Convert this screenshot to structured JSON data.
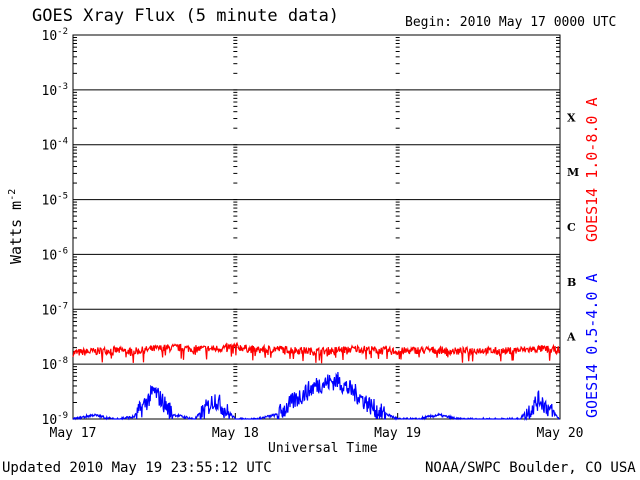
{
  "header": {
    "title": "GOES Xray Flux (5 minute data)",
    "begin": "Begin:  2010 May 17 0000 UTC"
  },
  "footer": {
    "updated": "Updated 2010 May 19 23:55:12 UTC",
    "credit": "NOAA/SWPC Boulder, CO USA"
  },
  "colors": {
    "long_channel": "#ff0000",
    "short_channel": "#0000ff",
    "axes": "#000000"
  },
  "chart_data": {
    "type": "line",
    "title": "GOES Xray Flux (5 minute data)",
    "xlabel": "Universal Time",
    "ylabel": "Watts m",
    "ylabel_superscript": "-2",
    "yscale": "log",
    "ylim": [
      1e-09,
      0.01
    ],
    "y_ticks": [
      {
        "value": 1e-09,
        "base": "10",
        "exp": "-9"
      },
      {
        "value": 1e-08,
        "base": "10",
        "exp": "-8"
      },
      {
        "value": 1e-07,
        "base": "10",
        "exp": "-7"
      },
      {
        "value": 1e-06,
        "base": "10",
        "exp": "-6"
      },
      {
        "value": 1e-05,
        "base": "10",
        "exp": "-5"
      },
      {
        "value": 0.0001,
        "base": "10",
        "exp": "-4"
      },
      {
        "value": 0.001,
        "base": "10",
        "exp": "-3"
      },
      {
        "value": 0.01,
        "base": "10",
        "exp": "-2"
      }
    ],
    "x_ticks": [
      {
        "value": "2010-05-17",
        "label": "May 17"
      },
      {
        "value": "2010-05-18",
        "label": "May 18"
      },
      {
        "value": "2010-05-19",
        "label": "May 19"
      },
      {
        "value": "2010-05-20",
        "label": "May 20"
      }
    ],
    "xlim": [
      "2010-05-17",
      "2010-05-20"
    ],
    "flare_classes": [
      {
        "label": "A",
        "y": 1e-08
      },
      {
        "label": "B",
        "y": 1e-07
      },
      {
        "label": "C",
        "y": 1e-06
      },
      {
        "label": "M",
        "y": 1e-05
      },
      {
        "label": "X",
        "y": 0.0001
      }
    ],
    "grid": "horizontal lines at each decade from 1e-8 to 1e-3",
    "series": [
      {
        "name": "GOES14 1.0-8.0 A",
        "color": "#ff0000",
        "x": [
          "2010-05-17 00:00",
          "2010-05-17 03:00",
          "2010-05-17 06:00",
          "2010-05-17 09:00",
          "2010-05-17 12:00",
          "2010-05-17 15:00",
          "2010-05-17 18:00",
          "2010-05-17 21:00",
          "2010-05-18 00:00",
          "2010-05-18 03:00",
          "2010-05-18 06:00",
          "2010-05-18 09:00",
          "2010-05-18 12:00",
          "2010-05-18 15:00",
          "2010-05-18 18:00",
          "2010-05-18 21:00",
          "2010-05-19 00:00",
          "2010-05-19 03:00",
          "2010-05-19 06:00",
          "2010-05-19 09:00",
          "2010-05-19 12:00",
          "2010-05-19 15:00",
          "2010-05-19 18:00",
          "2010-05-19 21:00",
          "2010-05-19 23:55"
        ],
        "values": [
          1.6e-08,
          1.7e-08,
          1.8e-08,
          1.7e-08,
          1.9e-08,
          2e-08,
          1.9e-08,
          1.9e-08,
          2.1e-08,
          1.8e-08,
          1.9e-08,
          1.8e-08,
          1.7e-08,
          1.8e-08,
          1.9e-08,
          1.8e-08,
          1.7e-08,
          1.8e-08,
          1.8e-08,
          1.7e-08,
          1.8e-08,
          1.7e-08,
          1.8e-08,
          1.9e-08,
          1.8e-08
        ]
      },
      {
        "name": "GOES14 0.5-4.0 A",
        "color": "#0000ff",
        "x": [
          "2010-05-17 00:00",
          "2010-05-17 03:00",
          "2010-05-17 06:00",
          "2010-05-17 09:00",
          "2010-05-17 12:00",
          "2010-05-17 15:00",
          "2010-05-17 18:00",
          "2010-05-17 21:00",
          "2010-05-18 00:00",
          "2010-05-18 03:00",
          "2010-05-18 06:00",
          "2010-05-18 09:00",
          "2010-05-18 12:00",
          "2010-05-18 15:00",
          "2010-05-18 18:00",
          "2010-05-18 21:00",
          "2010-05-19 00:00",
          "2010-05-19 03:00",
          "2010-05-19 06:00",
          "2010-05-19 09:00",
          "2010-05-19 12:00",
          "2010-05-19 15:00",
          "2010-05-19 18:00",
          "2010-05-19 21:00",
          "2010-05-19 23:55"
        ],
        "values": [
          1e-09,
          1.2e-09,
          1e-09,
          1.1e-09,
          3.5e-09,
          1.2e-09,
          1e-09,
          2.5e-09,
          1e-09,
          1e-09,
          1.2e-09,
          2.5e-09,
          4.5e-09,
          5.5e-09,
          3e-09,
          1.5e-09,
          1e-09,
          1e-09,
          1.2e-09,
          1e-09,
          1e-09,
          1e-09,
          1e-09,
          2.5e-09,
          1e-09
        ]
      }
    ]
  }
}
